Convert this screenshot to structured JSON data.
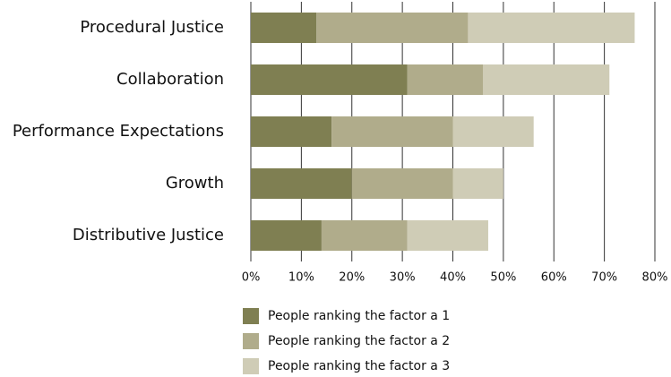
{
  "chart_data": {
    "type": "bar",
    "orientation": "horizontal",
    "stacked": true,
    "categories": [
      "Procedural Justice",
      "Collaboration",
      "Performance Expectations",
      "Growth",
      "Distributive Justice"
    ],
    "series": [
      {
        "name": "People ranking the factor a 1",
        "color": "#7f7f52",
        "values": [
          13,
          31,
          16,
          20,
          14
        ]
      },
      {
        "name": "People ranking the factor a 2",
        "color": "#b0ac8b",
        "values": [
          30,
          15,
          24,
          20,
          17
        ]
      },
      {
        "name": "People ranking the factor a 3",
        "color": "#cfccb6",
        "values": [
          33,
          25,
          16,
          10,
          16
        ]
      }
    ],
    "xlim": [
      0,
      80
    ],
    "xticks": [
      {
        "value": 0,
        "label": "0%"
      },
      {
        "value": 10,
        "label": "10%"
      },
      {
        "value": 20,
        "label": "20%"
      },
      {
        "value": 30,
        "label": "30%"
      },
      {
        "value": 40,
        "label": "40%"
      },
      {
        "value": 50,
        "label": "50%"
      },
      {
        "value": 60,
        "label": "60%"
      },
      {
        "value": 70,
        "label": "70%"
      },
      {
        "value": 80,
        "label": "80%"
      }
    ],
    "grid": true,
    "legend": "bottom"
  }
}
